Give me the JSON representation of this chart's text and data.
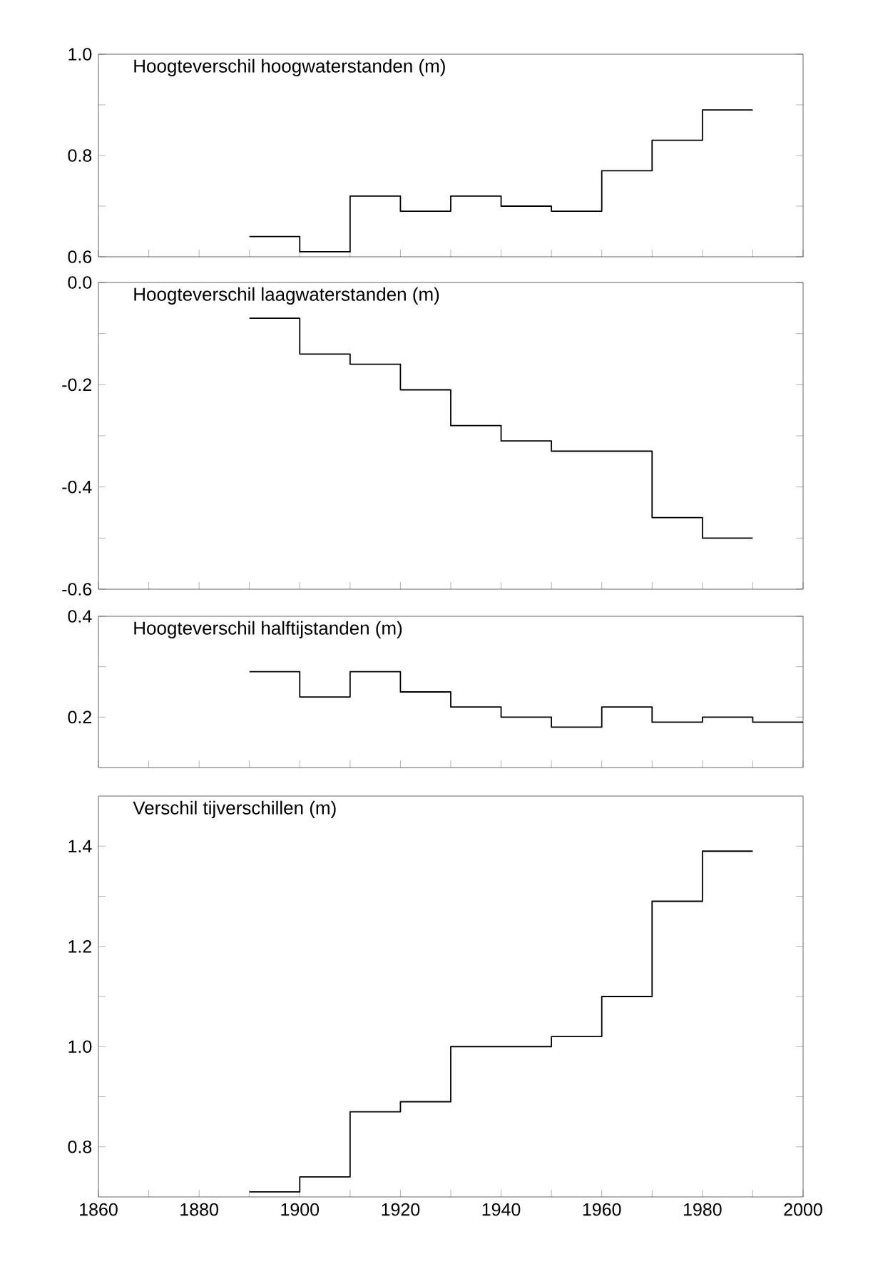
{
  "chart_data": [
    {
      "type": "step",
      "title": "Hoogteverschil hoogwaterstanden (m)",
      "xlim": [
        1860,
        2000
      ],
      "ylim": [
        0.6,
        1.0
      ],
      "tick_labels": "y",
      "xticks": [
        1860,
        1870,
        1880,
        1890,
        1900,
        1910,
        1920,
        1930,
        1940,
        1950,
        1960,
        1970,
        1980,
        1990,
        2000
      ],
      "yticks": [
        0.6,
        {
          "value": 0.7,
          "label": null
        },
        0.8,
        {
          "value": 0.9,
          "label": null
        },
        {
          "value": 1.0,
          "label": "1.0"
        }
      ],
      "series": [
        {
          "color": "#000000",
          "x": [
            1890,
            1900,
            1910,
            1920,
            1930,
            1940,
            1950,
            1960,
            1970,
            1980,
            1990
          ],
          "values": [
            0.64,
            0.61,
            0.72,
            0.69,
            0.72,
            0.7,
            0.69,
            0.77,
            0.83,
            0.89,
            0.89
          ]
        }
      ]
    },
    {
      "type": "step",
      "title": "Hoogteverschil laagwaterstanden (m)",
      "xlim": [
        1860,
        2000
      ],
      "ylim": [
        -0.6,
        0.0
      ],
      "tick_labels": "y",
      "xticks": [
        1860,
        1870,
        1880,
        1890,
        1900,
        1910,
        1920,
        1930,
        1940,
        1950,
        1960,
        1970,
        1980,
        1990,
        2000
      ],
      "yticks": [
        -0.6,
        {
          "value": -0.5,
          "label": null
        },
        -0.4,
        {
          "value": -0.3,
          "label": null
        },
        -0.2,
        {
          "value": -0.1,
          "label": null
        },
        {
          "value": 0.0,
          "label": "0.0"
        }
      ],
      "series": [
        {
          "color": "#000000",
          "x": [
            1890,
            1900,
            1910,
            1920,
            1930,
            1940,
            1950,
            1960,
            1970,
            1980,
            1990
          ],
          "values": [
            -0.07,
            -0.14,
            -0.16,
            -0.21,
            -0.28,
            -0.31,
            -0.33,
            -0.33,
            -0.46,
            -0.5,
            -0.5
          ]
        }
      ]
    },
    {
      "type": "step",
      "title": "Hoogteverschil halftijstanden (m)",
      "xlim": [
        1860,
        2000
      ],
      "ylim": [
        0.1,
        0.4
      ],
      "tick_labels": "y",
      "xticks": [
        1860,
        1870,
        1880,
        1890,
        1900,
        1910,
        1920,
        1930,
        1940,
        1950,
        1960,
        1970,
        1980,
        1990,
        2000
      ],
      "yticks": [
        0.2,
        {
          "value": 0.3,
          "label": null
        },
        0.4
      ],
      "series": [
        {
          "color": "#000000",
          "x": [
            1890,
            1900,
            1910,
            1920,
            1930,
            1940,
            1950,
            1960,
            1970,
            1980,
            1990,
            2000
          ],
          "values": [
            0.29,
            0.24,
            0.29,
            0.25,
            0.22,
            0.2,
            0.18,
            0.22,
            0.19,
            0.2,
            0.19,
            0.19
          ]
        }
      ]
    },
    {
      "type": "step",
      "title": "Verschil tijverschillen (m)",
      "xlim": [
        1860,
        2000
      ],
      "ylim": [
        0.7,
        1.5
      ],
      "xticks": [
        1860,
        {
          "value": 1870,
          "label": null
        },
        1880,
        {
          "value": 1890,
          "label": null
        },
        1900,
        {
          "value": 1910,
          "label": null
        },
        1920,
        {
          "value": 1930,
          "label": null
        },
        1940,
        {
          "value": 1950,
          "label": null
        },
        1960,
        {
          "value": 1970,
          "label": null
        },
        1980,
        {
          "value": 1990,
          "label": null
        },
        2000
      ],
      "yticks": [
        0.8,
        {
          "value": 0.9,
          "label": null
        },
        {
          "value": 1.0,
          "label": "1.0"
        },
        {
          "value": 1.1,
          "label": null
        },
        1.2,
        {
          "value": 1.3,
          "label": null
        },
        1.4
      ],
      "series": [
        {
          "color": "#000000",
          "x": [
            1890,
            1900,
            1910,
            1920,
            1930,
            1940,
            1950,
            1960,
            1970,
            1980,
            1990
          ],
          "values": [
            0.71,
            0.74,
            0.87,
            0.89,
            1.0,
            1.0,
            1.02,
            1.1,
            1.29,
            1.39,
            1.39
          ]
        }
      ]
    }
  ]
}
